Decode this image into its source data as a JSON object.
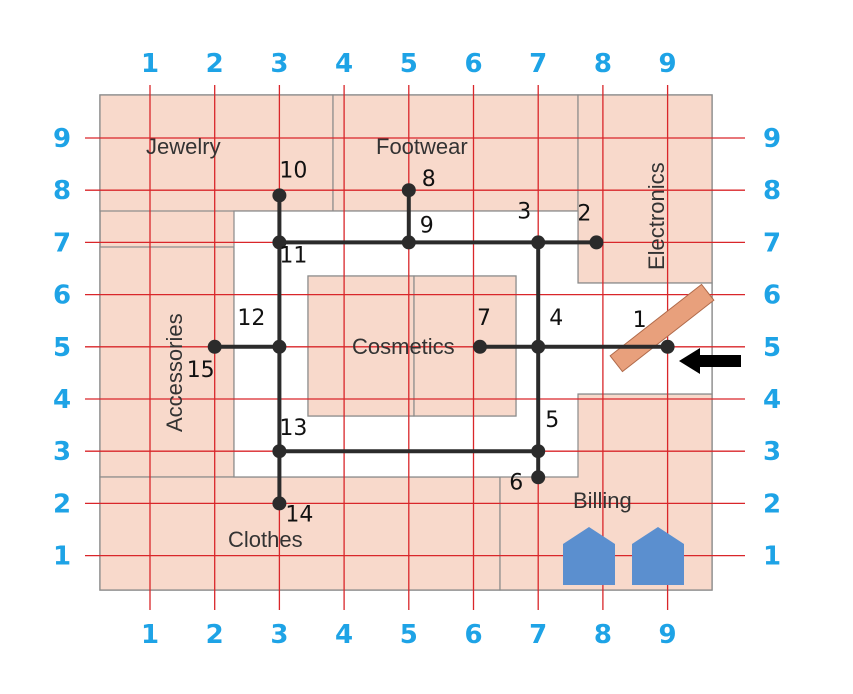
{
  "colors": {
    "store_fill": "#f8d9cb",
    "store_border": "#8a8a8a",
    "grid_line": "#d9262a",
    "tick_label": "#1ea3e6",
    "path": "#2b2b2b",
    "label_text": "#333333",
    "handwriting": "#111111",
    "entrance_bar": "#e8a07c",
    "billing_icon": "#5b8fcf",
    "arrow": "#000000"
  },
  "grid": {
    "x_ticks_top": [
      "1",
      "2",
      "3",
      "4",
      "5",
      "6",
      "7",
      "8",
      "9"
    ],
    "x_ticks_bottom": [
      "1",
      "2",
      "3",
      "4",
      "5",
      "6",
      "7",
      "8",
      "9"
    ],
    "y_ticks_left": [
      "9",
      "8",
      "7",
      "6",
      "5",
      "4",
      "3",
      "2",
      "1"
    ],
    "y_ticks_right": [
      "9",
      "8",
      "7",
      "6",
      "5",
      "4",
      "3",
      "2",
      "1"
    ]
  },
  "sections": {
    "jewelry": "Jewelry",
    "footwear": "Footwear",
    "electronics": "Electronics",
    "accessories": "Accessories",
    "cosmetics": "Cosmetics",
    "billing": "Billing",
    "clothes": "Clothes"
  },
  "path_nodes": [
    {
      "id": "1",
      "x": 9,
      "y": 5
    },
    {
      "id": "2",
      "x": 7.9,
      "y": 7
    },
    {
      "id": "3",
      "x": 7,
      "y": 7
    },
    {
      "id": "4",
      "x": 7,
      "y": 5
    },
    {
      "id": "5",
      "x": 7,
      "y": 3
    },
    {
      "id": "6",
      "x": 7,
      "y": 2.5
    },
    {
      "id": "7",
      "x": 6.1,
      "y": 5
    },
    {
      "id": "8",
      "x": 5,
      "y": 8
    },
    {
      "id": "9",
      "x": 5,
      "y": 7
    },
    {
      "id": "10",
      "x": 3,
      "y": 7.9
    },
    {
      "id": "11",
      "x": 3,
      "y": 7
    },
    {
      "id": "12",
      "x": 3,
      "y": 5
    },
    {
      "id": "13",
      "x": 3,
      "y": 3
    },
    {
      "id": "14",
      "x": 3,
      "y": 2
    },
    {
      "id": "15",
      "x": 2,
      "y": 5
    }
  ],
  "path_edges": [
    [
      "1",
      "4"
    ],
    [
      "4",
      "7"
    ],
    [
      "4",
      "3"
    ],
    [
      "3",
      "2"
    ],
    [
      "3",
      "9"
    ],
    [
      "9",
      "8"
    ],
    [
      "9",
      "11"
    ],
    [
      "11",
      "10"
    ],
    [
      "11",
      "12"
    ],
    [
      "12",
      "15"
    ],
    [
      "12",
      "13"
    ],
    [
      "13",
      "14"
    ],
    [
      "13",
      "5"
    ],
    [
      "5",
      "4"
    ],
    [
      "5",
      "6"
    ]
  ],
  "icons": {
    "entrance_arrow": "left-arrow-icon",
    "billing_counter": "house-icon"
  }
}
